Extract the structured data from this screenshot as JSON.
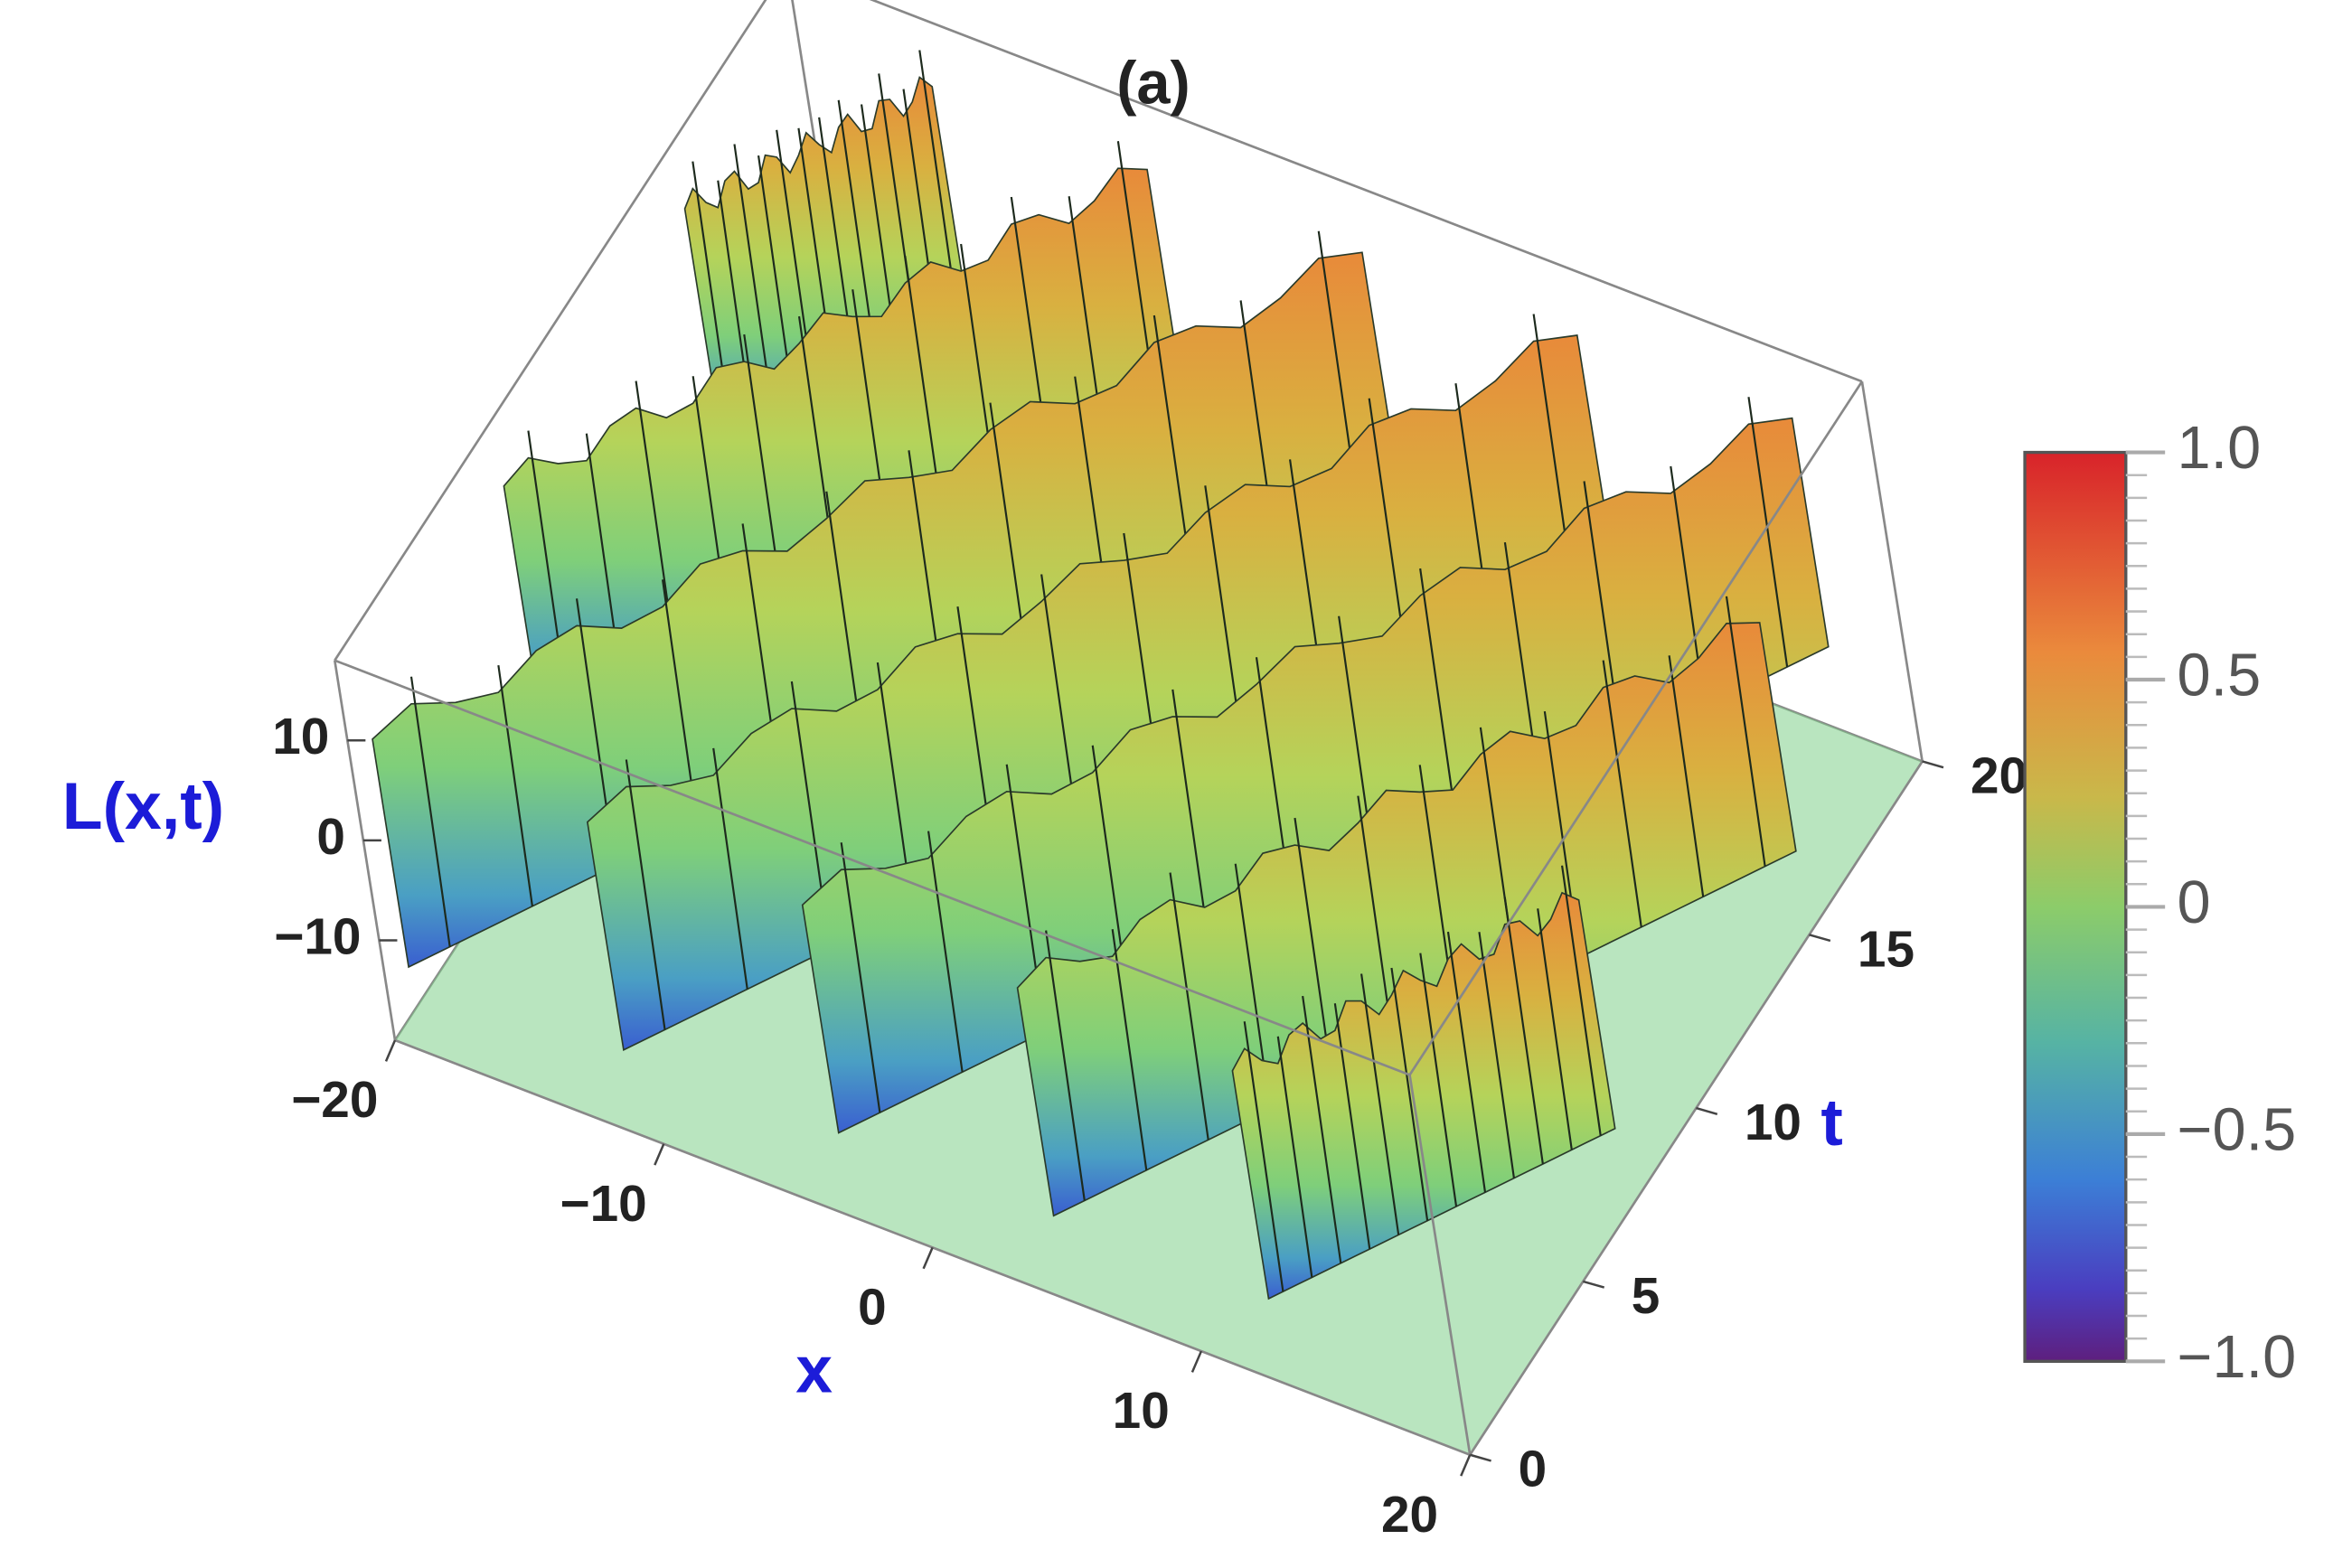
{
  "chart_data": {
    "type": "surface3d",
    "title": "(a)",
    "xlabel": "x",
    "ylabel": "t",
    "zlabel": "L(x,t)",
    "xlim": [
      -20,
      20
    ],
    "ylim": [
      0,
      20
    ],
    "zlim": [
      -20,
      18
    ],
    "xticks": [
      {
        "value": -20,
        "label": "−20"
      },
      {
        "value": -10,
        "label": "−10"
      },
      0,
      10,
      20
    ],
    "yticks": [
      0,
      5,
      10,
      15,
      20
    ],
    "zticks": [
      {
        "value": -10,
        "label": "−10"
      },
      0,
      10
    ],
    "colorbar": {
      "lim": [
        -1,
        1
      ],
      "ticks": [
        {
          "value": -1,
          "label": "−1.0"
        },
        {
          "value": -0.5,
          "label": "−0.5"
        },
        0,
        0.5,
        {
          "value": 1,
          "label": "1.0"
        }
      ]
    }
  }
}
